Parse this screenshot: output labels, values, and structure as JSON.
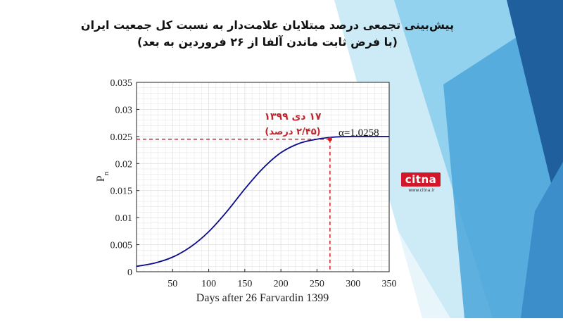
{
  "title_lines": [
    "پیش‌بینی تجمعی درصد مبتلایان علامت‌دار به نسبت کل جمعیت ایران",
    "(با فرض ثابت ماندن آلفا از ۲۶ فروردین به بعد)"
  ],
  "logo": {
    "name": "citna",
    "url": "www.citna.ir"
  },
  "colors": {
    "curve": "#0a0a8c",
    "marker": "#d11f24",
    "annotation": "#c0262d",
    "grid": "#e2e2e2"
  },
  "chart_data": {
    "type": "line",
    "xlabel": "Days after 26 Farvardin 1399",
    "ylabel": "P",
    "ylabel_subscript": "n",
    "xlim": [
      0,
      350
    ],
    "ylim": [
      0,
      0.035
    ],
    "xticks": [
      50,
      100,
      150,
      200,
      250,
      300,
      350
    ],
    "yticks": [
      "0",
      "0.005",
      "0.01",
      "0.015",
      "0.02",
      "0.025",
      "0.03",
      "0.035"
    ],
    "grid": true,
    "series": [
      {
        "x": [
          0,
          25,
          50,
          75,
          100,
          125,
          150,
          175,
          200,
          225,
          250,
          275,
          300,
          325,
          350
        ],
        "y": [
          0.001,
          0.0016,
          0.0027,
          0.0046,
          0.0074,
          0.0111,
          0.0153,
          0.0191,
          0.022,
          0.0237,
          0.0245,
          0.0249,
          0.025,
          0.025,
          0.025
        ]
      }
    ],
    "marker_point": {
      "x": 268,
      "y": 0.0245
    },
    "annotations": {
      "date": "۱۷ دی ۱۳۹۹",
      "percent": "(۲/۴۵ درصد)",
      "alpha": "α=1.0258"
    }
  }
}
